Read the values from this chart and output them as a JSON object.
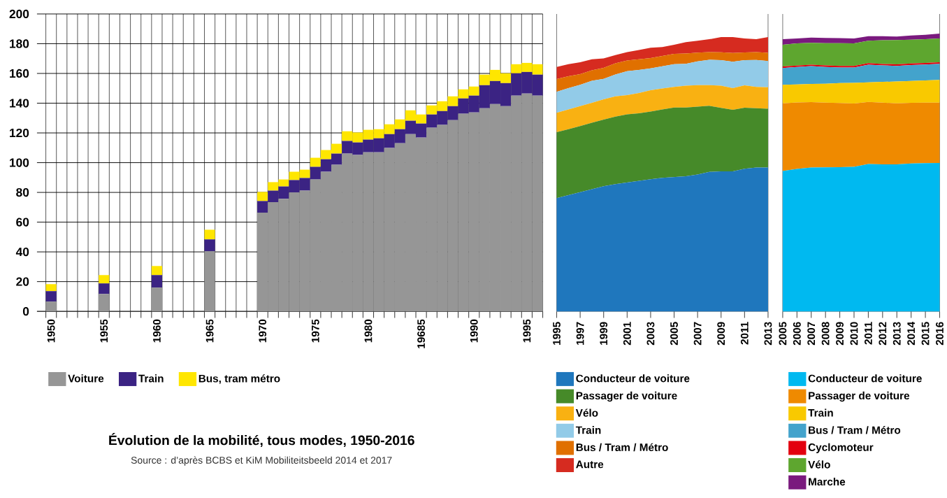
{
  "chart_data": [
    {
      "type": "bar",
      "stacked": true,
      "title": "Évolution de la mobilité, tous modes, 1950-2016",
      "annotations": [
        "Source : d’après BCBS et KiM Mobiliteitsbeeld 2014 et 2017"
      ],
      "categories": [
        "1950",
        null,
        null,
        null,
        null,
        "1955",
        null,
        null,
        null,
        null,
        "1960",
        null,
        null,
        null,
        null,
        "1965",
        null,
        null,
        null,
        null,
        "1970",
        null,
        null,
        null,
        null,
        "1975",
        null,
        null,
        null,
        null,
        "1980",
        null,
        null,
        null,
        null,
        "19685",
        null,
        null,
        null,
        null,
        "1990",
        null,
        null,
        null,
        null,
        "1995",
        null
      ],
      "series": [
        {
          "name": "Voiture",
          "color": "#969696",
          "values": [
            6.6,
            null,
            null,
            null,
            null,
            11.7,
            null,
            null,
            null,
            null,
            16.0,
            null,
            null,
            null,
            null,
            40.4,
            null,
            null,
            null,
            null,
            66.4,
            73.4,
            75.7,
            80.0,
            81.2,
            88.7,
            93.9,
            98.6,
            106.1,
            105.2,
            107.0,
            107.0,
            109.9,
            113.1,
            119.2,
            116.9,
            123.5,
            125.4,
            128.6,
            132.9,
            133.8,
            136.6,
            139.4,
            138.0,
            145.1,
            146.5,
            145.1
          ]
        },
        {
          "name": "Train",
          "color": "#3b2383",
          "values": [
            7.0,
            null,
            null,
            null,
            null,
            7.1,
            null,
            null,
            null,
            null,
            8.4,
            null,
            null,
            null,
            null,
            8.0,
            null,
            null,
            null,
            null,
            7.8,
            7.8,
            8.3,
            8.3,
            8.5,
            8.5,
            8.4,
            7.5,
            8.5,
            8.4,
            8.5,
            9.4,
            9.3,
            9.4,
            9.0,
            9.4,
            8.9,
            9.3,
            9.4,
            10.3,
            11.3,
            15.5,
            15.5,
            15.5,
            15.0,
            14.5,
            14.1
          ]
        },
        {
          "name": "Bus, tram métro",
          "color": "#ffe600",
          "values": [
            4.7,
            null,
            null,
            null,
            null,
            5.6,
            null,
            null,
            null,
            null,
            6.1,
            null,
            null,
            null,
            null,
            6.5,
            null,
            null,
            null,
            null,
            6.1,
            5.7,
            4.7,
            5.6,
            5.6,
            6.1,
            6.2,
            6.6,
            6.5,
            6.7,
            6.6,
            6.1,
            6.6,
            6.6,
            7.0,
            6.1,
            6.1,
            6.6,
            6.6,
            6.1,
            6.1,
            7.1,
            7.5,
            6.6,
            6.1,
            6.1,
            7.0
          ]
        }
      ],
      "ylim": [
        0,
        200
      ],
      "yticks": [
        0,
        20,
        40,
        60,
        80,
        100,
        120,
        140,
        160,
        180,
        200
      ],
      "grid": true,
      "legend": "bottom"
    },
    {
      "type": "area",
      "stacked": true,
      "x": [
        1995,
        1996,
        1997,
        1998,
        1999,
        2000,
        2001,
        2002,
        2003,
        2004,
        2005,
        2006,
        2007,
        2008,
        2009,
        2010,
        2011,
        2012,
        2013
      ],
      "series": [
        {
          "name": "Conducteur de voiture",
          "color": "#1f77bd",
          "values": [
            76.1,
            78.1,
            80.1,
            82.2,
            84.2,
            85.6,
            86.7,
            87.8,
            88.9,
            89.8,
            90.3,
            90.8,
            92.0,
            93.8,
            94.1,
            94.1,
            95.9,
            96.7,
            96.7
          ]
        },
        {
          "name": "Passager de voiture",
          "color": "#468a29",
          "values": [
            44.4,
            44.4,
            44.5,
            44.6,
            44.8,
            45.4,
            45.8,
            45.4,
            45.5,
            46.0,
            46.8,
            46.3,
            45.6,
            44.4,
            42.7,
            41.4,
            41.0,
            39.9,
            39.5
          ]
        },
        {
          "name": "Vélo",
          "color": "#f9b112",
          "values": [
            13.0,
            13.3,
            13.4,
            13.4,
            13.6,
            13.6,
            12.9,
            13.6,
            14.3,
            14.1,
            13.9,
            14.7,
            14.5,
            13.9,
            15.0,
            14.6,
            15.1,
            14.4,
            14.5
          ]
        },
        {
          "name": "Train",
          "color": "#92cbe8",
          "values": [
            14.1,
            14.3,
            14.4,
            14.9,
            13.7,
            14.7,
            16.1,
            15.5,
            14.7,
            14.9,
            15.2,
            14.7,
            16.0,
            17.1,
            17.1,
            17.8,
            16.9,
            18.1,
            17.7
          ]
        },
        {
          "name": "Bus / Tram / Métro",
          "color": "#e07000",
          "values": [
            8.6,
            8.0,
            7.1,
            7.0,
            7.5,
            7.5,
            7.2,
            7.2,
            7.0,
            7.0,
            7.0,
            6.9,
            5.9,
            5.1,
            5.3,
            5.8,
            5.2,
            5.2,
            5.5
          ]
        },
        {
          "name": "Autre",
          "color": "#d62b20",
          "values": [
            8.1,
            8.1,
            8.0,
            7.4,
            6.3,
            5.5,
            5.6,
            6.2,
            6.9,
            6.0,
            6.1,
            7.6,
            8.0,
            8.7,
            10.3,
            10.8,
            9.4,
            8.7,
            10.6
          ]
        }
      ],
      "xlim": [
        1995,
        2013
      ],
      "xticks": [
        1995,
        1997,
        1999,
        2001,
        2003,
        2005,
        2007,
        2009,
        2011,
        2013
      ],
      "ylim": [
        0,
        200
      ],
      "tick_labels": "x",
      "legend": "bottom"
    },
    {
      "type": "area",
      "stacked": true,
      "x": [
        2005,
        2006,
        2007,
        2008,
        2009,
        2010,
        2011,
        2012,
        2013,
        2014,
        2015,
        2016
      ],
      "series": [
        {
          "name": "Conducteur de voiture",
          "color": "#00b9f0",
          "values": [
            94.4,
            95.8,
            96.7,
            96.9,
            97.0,
            97.2,
            99.1,
            98.9,
            98.8,
            99.4,
            99.7,
            99.8
          ]
        },
        {
          "name": "Passager de voiture",
          "color": "#ef8a00",
          "values": [
            45.5,
            44.7,
            44.0,
            43.5,
            43.1,
            42.6,
            41.7,
            41.5,
            41.1,
            40.8,
            40.7,
            40.6
          ]
        },
        {
          "name": "Train",
          "color": "#f9c900",
          "values": [
            12.4,
            12.1,
            12.3,
            12.7,
            13.4,
            13.9,
            13.2,
            13.9,
            14.7,
            14.7,
            14.9,
            15.2
          ]
        },
        {
          "name": "Bus / Tram / Métro",
          "color": "#43a3cc",
          "values": [
            11.4,
            11.7,
            11.9,
            11.3,
            10.5,
            10.3,
            11.9,
            11.1,
            10.5,
            10.8,
            10.7,
            10.9
          ]
        },
        {
          "name": "Cyclomoteur",
          "color": "#e3000f",
          "values": [
            1.0,
            1.0,
            1.0,
            1.0,
            1.0,
            1.0,
            1.0,
            1.0,
            1.0,
            1.0,
            1.0,
            1.0
          ]
        },
        {
          "name": "Vélo",
          "color": "#5ea62f",
          "values": [
            14.6,
            14.9,
            14.7,
            15.0,
            15.3,
            15.2,
            15.1,
            15.9,
            16.4,
            16.0,
            16.0,
            16.0
          ]
        },
        {
          "name": "Marche",
          "color": "#7a1a7e",
          "values": [
            3.7,
            3.3,
            3.5,
            3.5,
            3.5,
            3.3,
            3.0,
            2.7,
            2.3,
            2.8,
            3.0,
            3.3
          ]
        }
      ],
      "xlim": [
        2005,
        2016
      ],
      "xticks": [
        2005,
        2006,
        2007,
        2008,
        2009,
        2010,
        2011,
        2012,
        2013,
        2014,
        2015,
        2016
      ],
      "ylim": [
        0,
        200
      ],
      "tick_labels": "x",
      "legend": "bottom"
    }
  ]
}
